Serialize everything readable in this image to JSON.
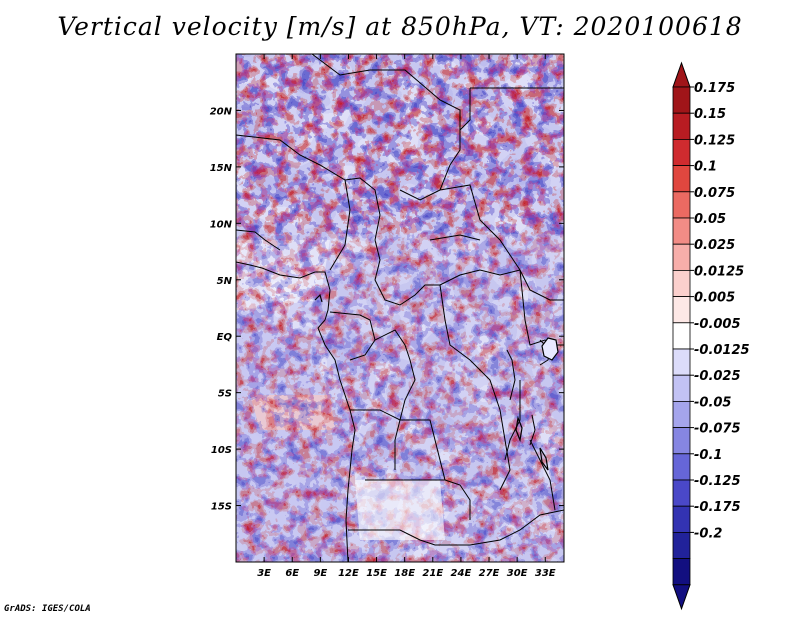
{
  "title": "Vertical velocity [m/s] at 850hPa, VT: 2020100618",
  "credit": "GrADS: IGES/COLA",
  "map": {
    "lon_range": [
      0,
      35
    ],
    "lat_range": [
      -20,
      25
    ],
    "lon_ticks": [
      {
        "value": 3,
        "label": "3E"
      },
      {
        "value": 6,
        "label": "6E"
      },
      {
        "value": 9,
        "label": "9E"
      },
      {
        "value": 12,
        "label": "12E"
      },
      {
        "value": 15,
        "label": "15E"
      },
      {
        "value": 18,
        "label": "18E"
      },
      {
        "value": 21,
        "label": "21E"
      },
      {
        "value": 24,
        "label": "24E"
      },
      {
        "value": 27,
        "label": "27E"
      },
      {
        "value": 30,
        "label": "30E"
      },
      {
        "value": 33,
        "label": "33E"
      }
    ],
    "lat_ticks": [
      {
        "value": 20,
        "label": "20N"
      },
      {
        "value": 15,
        "label": "15N"
      },
      {
        "value": 10,
        "label": "10N"
      },
      {
        "value": 5,
        "label": "5N"
      },
      {
        "value": 0,
        "label": "EQ"
      },
      {
        "value": -5,
        "label": "5S"
      },
      {
        "value": -10,
        "label": "10S"
      },
      {
        "value": -15,
        "label": "15S"
      }
    ]
  },
  "colorbar": {
    "labels": [
      "0.175",
      "0.15",
      "0.125",
      "0.1",
      "0.075",
      "0.05",
      "0.025",
      "0.0125",
      "0.005",
      "-0.005",
      "-0.0125",
      "-0.025",
      "-0.05",
      "-0.075",
      "-0.1",
      "-0.125",
      "-0.175",
      "-0.2"
    ],
    "colors": [
      "#a01519",
      "#b81c22",
      "#cf2b2f",
      "#e0473f",
      "#eb6a62",
      "#f28c86",
      "#f7aeaa",
      "#fbd0cd",
      "#fde8e6",
      "#ffffff",
      "#dcdcfa",
      "#c2c2f4",
      "#a5a5ec",
      "#8686e2",
      "#6666d8",
      "#4a48c8",
      "#3333b2",
      "#21229a",
      "#120f80"
    ],
    "top_color": "#a01519",
    "bottom_color": "#120f80"
  }
}
